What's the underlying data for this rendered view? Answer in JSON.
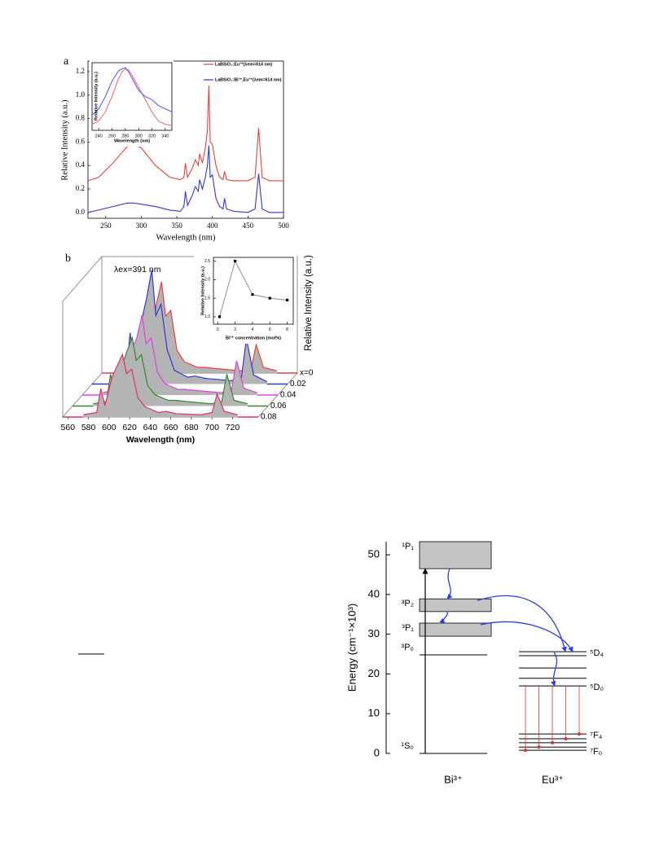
{
  "chart_data": [
    {
      "type": "line",
      "panel": "a",
      "xlabel": "Wavelength (nm)",
      "ylabel": "Relative Intensity (a.u.)",
      "xlim": [
        225,
        500
      ],
      "ylim": [
        -0.05,
        1.29
      ],
      "xticks": [
        250,
        300,
        350,
        400,
        450,
        500
      ],
      "yticks": [
        {
          "value": 0,
          "label": "0.0"
        },
        0.2,
        0.4,
        0.6,
        0.8,
        {
          "value": 1,
          "label": "1.0"
        },
        1.2
      ],
      "legend": "upper right",
      "x": [
        225,
        240,
        260,
        280,
        290,
        300,
        320,
        340,
        355,
        360,
        362,
        365,
        372,
        376,
        380,
        382,
        386,
        390,
        393,
        395,
        397,
        400,
        405,
        410,
        415,
        417,
        420,
        430,
        450,
        460,
        465,
        470,
        480,
        490,
        500
      ],
      "series": [
        {
          "name": "LaBSiO₃:Eu³⁺(λem=614 nm)",
          "color": "#e8413c",
          "values": [
            0.27,
            0.3,
            0.42,
            0.56,
            0.58,
            0.55,
            0.4,
            0.3,
            0.28,
            0.3,
            0.42,
            0.3,
            0.38,
            0.45,
            0.4,
            0.5,
            0.42,
            0.55,
            0.7,
            1.08,
            0.6,
            0.58,
            0.4,
            0.3,
            0.28,
            0.35,
            0.28,
            0.27,
            0.27,
            0.3,
            0.72,
            0.3,
            0.27,
            0.27,
            0.27
          ]
        },
        {
          "name": "LaBSiO₃:Bi³⁺,Eu³⁺(λem=614 nm)",
          "color": "#3535d8",
          "values": [
            0,
            0.02,
            0.05,
            0.08,
            0.08,
            0.07,
            0.05,
            0.02,
            0.01,
            0.05,
            0.18,
            0.06,
            0.15,
            0.22,
            0.18,
            0.28,
            0.2,
            0.3,
            0.4,
            0.57,
            0.3,
            0.32,
            0.12,
            0.05,
            0.03,
            0.12,
            0.03,
            0.01,
            0,
            0.03,
            0.33,
            0.03,
            0,
            0,
            0
          ]
        }
      ]
    },
    {
      "type": "line",
      "xlabel": "Wavelength (nm)",
      "ylabel": "Relative Intensity (a.u.)",
      "xlim": [
        230,
        350
      ],
      "ylim": [
        0,
        1.1
      ],
      "xticks": [
        240,
        260,
        280,
        300,
        320,
        340
      ],
      "x": [
        230,
        240,
        250,
        260,
        270,
        275,
        280,
        285,
        290,
        300,
        310,
        320,
        330,
        340,
        350
      ],
      "series": [
        {
          "color": "#f07070",
          "values": [
            0.1,
            0.15,
            0.3,
            0.55,
            0.85,
            0.95,
            1.0,
            0.98,
            0.9,
            0.7,
            0.5,
            0.3,
            0.15,
            0.1,
            0.08
          ]
        },
        {
          "color": "#6060f0",
          "values": [
            0.25,
            0.35,
            0.55,
            0.8,
            0.97,
            1.0,
            1.02,
            0.95,
            0.85,
            0.65,
            0.55,
            0.5,
            0.4,
            0.35,
            0.3
          ]
        }
      ]
    },
    {
      "type": "waterfall",
      "panel": "b",
      "annotation": "λex=391 nm",
      "xlabel": "Wavelength (nm)",
      "ylabel": "Relative Intensity (a.u.)",
      "xlim": [
        555,
        745
      ],
      "ylim": [
        0,
        1
      ],
      "xticks": [
        560,
        580,
        600,
        620,
        640,
        660,
        680,
        700,
        720
      ],
      "x": [
        575,
        588,
        592,
        596,
        603,
        608,
        613,
        617,
        622,
        628,
        635,
        648,
        655,
        665,
        690,
        700,
        705,
        712,
        725
      ],
      "series": [
        {
          "name": "x=0",
          "color": "#e8413c",
          "values": [
            0.02,
            0.05,
            0.35,
            0.1,
            0.3,
            0.6,
            0.8,
            0.5,
            0.55,
            0.2,
            0.1,
            0.05,
            0.05,
            0.04,
            0.02,
            0.03,
            0.25,
            0.05,
            0.02
          ]
        },
        {
          "name": "0.02",
          "color": "#3535d8",
          "values": [
            0.02,
            0.05,
            0.45,
            0.15,
            0.55,
            0.75,
            1.0,
            0.6,
            0.7,
            0.3,
            0.12,
            0.06,
            0.07,
            0.05,
            0.03,
            0.05,
            0.4,
            0.08,
            0.02
          ]
        },
        {
          "name": "0.04",
          "color": "#e040e0",
          "values": [
            0.02,
            0.05,
            0.3,
            0.12,
            0.4,
            0.5,
            0.7,
            0.45,
            0.5,
            0.2,
            0.1,
            0.05,
            0.05,
            0.04,
            0.02,
            0.04,
            0.3,
            0.06,
            0.02
          ]
        },
        {
          "name": "0.06",
          "color": "#2e8b2e",
          "values": [
            0.02,
            0.04,
            0.28,
            0.1,
            0.35,
            0.48,
            0.6,
            0.4,
            0.45,
            0.18,
            0.1,
            0.05,
            0.05,
            0.04,
            0.02,
            0.04,
            0.28,
            0.05,
            0.02
          ]
        },
        {
          "name": "0.08",
          "color": "#e0306a",
          "values": [
            0.02,
            0.04,
            0.25,
            0.1,
            0.35,
            0.45,
            0.55,
            0.38,
            0.42,
            0.17,
            0.09,
            0.04,
            0.05,
            0.03,
            0.02,
            0.04,
            0.2,
            0.05,
            0.02
          ]
        }
      ]
    },
    {
      "type": "line",
      "markers": true,
      "xlabel": "Bi³⁺ concentration (mol%)",
      "ylabel": "Relative Intensity (a.u.)",
      "xlim": [
        -0.5,
        8.7
      ],
      "ylim": [
        0.8,
        2.6
      ],
      "xticks": [
        0,
        2,
        4,
        6,
        8
      ],
      "yticks": [
        {
          "value": 1,
          "label": "1.0"
        },
        1.5,
        {
          "value": 2,
          "label": "2.0"
        },
        2.5
      ],
      "x": [
        0.2,
        2,
        4,
        6,
        8
      ],
      "series": [
        {
          "color": "#999999",
          "values": [
            1.0,
            2.5,
            1.6,
            1.5,
            1.45
          ]
        }
      ]
    },
    {
      "type": "energy-level",
      "ylabel": "Energy (cm⁻¹×10³)",
      "ylim": [
        0,
        53.3
      ],
      "yticks": [
        0,
        10,
        20,
        30,
        40,
        50
      ],
      "groups": [
        {
          "name": "Bi³⁺",
          "levels": [
            {
              "label": "¹S₀",
              "energy": 0
            },
            {
              "label": "³P₀",
              "energy": 24.8
            },
            {
              "label": "³P₁",
              "low": 29.5,
              "high": 32.8
            },
            {
              "label": "³P₂",
              "low": 35.7,
              "high": 38.9
            },
            {
              "label": "¹P₁",
              "low": 46.5,
              "high": 53.3
            }
          ]
        },
        {
          "name": "Eu³⁺",
          "levels": [
            {
              "label": "⁷F₀",
              "energy": 0.8
            },
            {
              "energy": 1.6
            },
            {
              "energy": 2.7
            },
            {
              "energy": 3.7
            },
            {
              "label": "⁷F₄",
              "energy": 4.9
            },
            {
              "label": "⁵D₀",
              "energy": 17.0
            },
            {
              "energy": 18.9
            },
            {
              "energy": 21.5
            },
            {
              "energy": 24.6
            },
            {
              "label": "⁵D₄",
              "energy": 25.6
            }
          ]
        }
      ]
    }
  ]
}
